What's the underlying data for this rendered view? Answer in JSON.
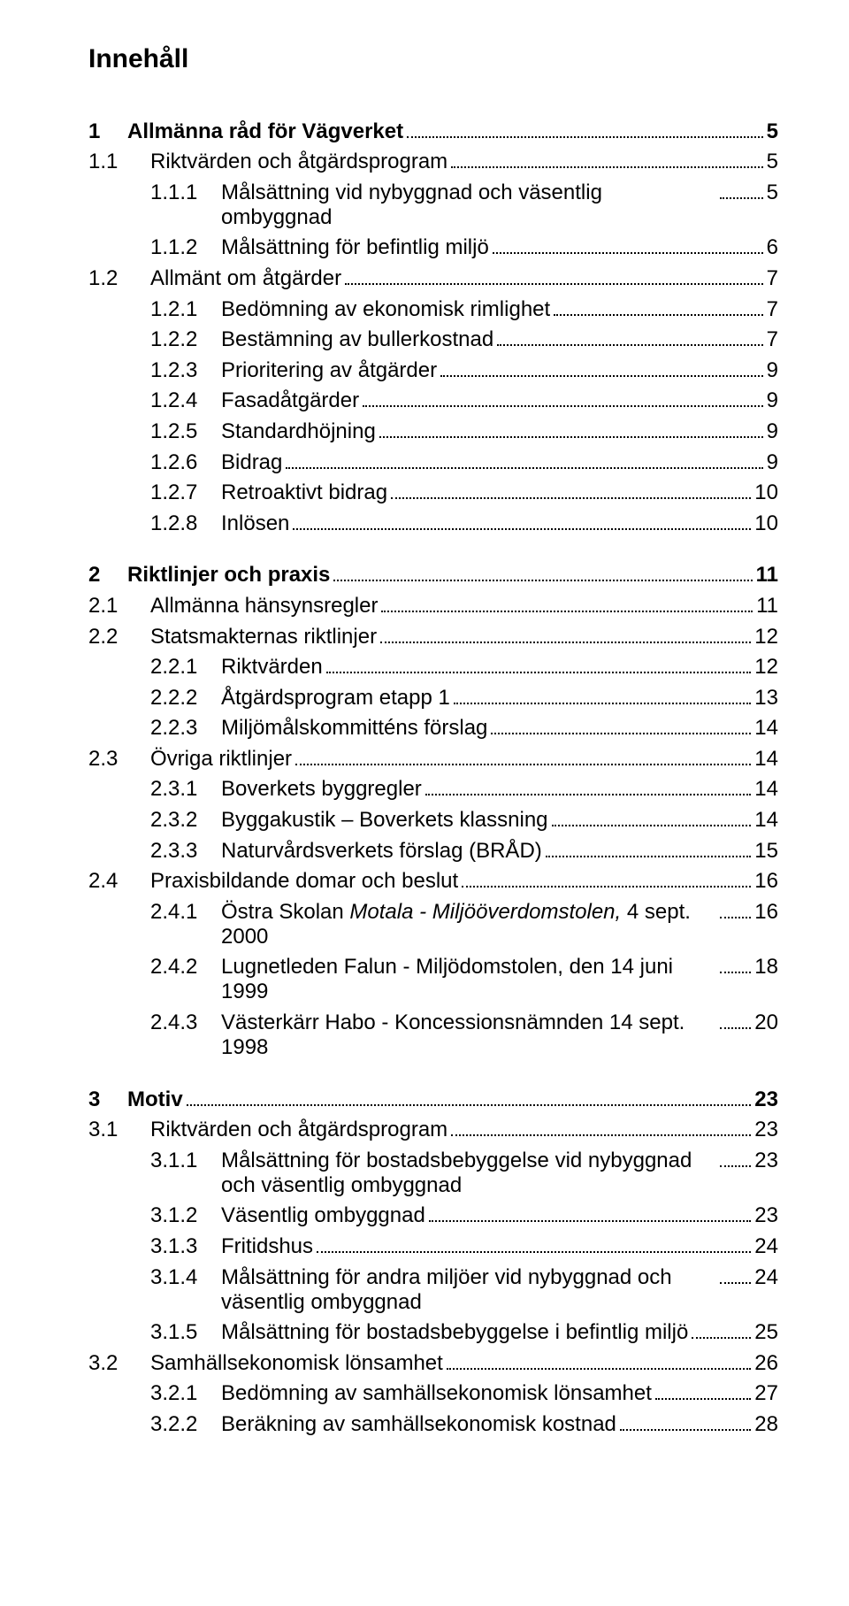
{
  "title": "Innehåll",
  "toc": [
    {
      "level": 1,
      "num": "1",
      "text": "Allmänna råd för Vägverket",
      "page": "5"
    },
    {
      "level": 2,
      "num": "1.1",
      "text": "Riktvärden och åtgärdsprogram",
      "page": "5"
    },
    {
      "level": 3,
      "num": "1.1.1",
      "text": "Målsättning vid nybyggnad och väsentlig ombyggnad",
      "page": "5"
    },
    {
      "level": 3,
      "num": "1.1.2",
      "text": "Målsättning för befintlig miljö",
      "page": "6"
    },
    {
      "level": 2,
      "num": "1.2",
      "text": "Allmänt om åtgärder",
      "page": "7"
    },
    {
      "level": 3,
      "num": "1.2.1",
      "text": "Bedömning av ekonomisk rimlighet",
      "page": "7"
    },
    {
      "level": 3,
      "num": "1.2.2",
      "text": "Bestämning av bullerkostnad",
      "page": "7"
    },
    {
      "level": 3,
      "num": "1.2.3",
      "text": "Prioritering av åtgärder",
      "page": "9"
    },
    {
      "level": 3,
      "num": "1.2.4",
      "text": "Fasadåtgärder",
      "page": "9"
    },
    {
      "level": 3,
      "num": "1.2.5",
      "text": "Standardhöjning",
      "page": "9"
    },
    {
      "level": 3,
      "num": "1.2.6",
      "text": "Bidrag",
      "page": "9"
    },
    {
      "level": 3,
      "num": "1.2.7",
      "text": "Retroaktivt bidrag",
      "page": "10"
    },
    {
      "level": 3,
      "num": "1.2.8",
      "text": "Inlösen",
      "page": "10"
    },
    {
      "level": 1,
      "num": "2",
      "text": "Riktlinjer och praxis",
      "page": "11"
    },
    {
      "level": 2,
      "num": "2.1",
      "text": "Allmänna hänsynsregler",
      "page": "11"
    },
    {
      "level": 2,
      "num": "2.2",
      "text": "Statsmakternas riktlinjer",
      "page": "12"
    },
    {
      "level": 3,
      "num": "2.2.1",
      "text": "Riktvärden",
      "page": "12"
    },
    {
      "level": 3,
      "num": "2.2.2",
      "text": "Åtgärdsprogram  etapp 1",
      "page": "13"
    },
    {
      "level": 3,
      "num": "2.2.3",
      "text": "Miljömålskommitténs förslag",
      "page": "14"
    },
    {
      "level": 2,
      "num": "2.3",
      "text": "Övriga riktlinjer",
      "page": "14"
    },
    {
      "level": 3,
      "num": "2.3.1",
      "text": "Boverkets byggregler",
      "page": "14"
    },
    {
      "level": 3,
      "num": "2.3.2",
      "text": "Byggakustik – Boverkets  klassning",
      "page": "14"
    },
    {
      "level": 3,
      "num": "2.3.3",
      "text": "Naturvårdsverkets förslag (BRÅD)",
      "page": "15"
    },
    {
      "level": 2,
      "num": "2.4",
      "text": "Praxisbildande domar och beslut",
      "page": "16"
    },
    {
      "level": 3,
      "num": "2.4.1",
      "text_html": "Östra Skolan <span class=\"italic\">Motala - Miljööverdomstolen,</span>  4 sept. 2000",
      "page": "16"
    },
    {
      "level": 3,
      "num": "2.4.2",
      "text": "Lugnetleden Falun - Miljödomstolen, den 14 juni 1999",
      "page": "18"
    },
    {
      "level": 3,
      "num": "2.4.3",
      "text": "Västerkärr Habo - Koncessionsnämnden  14 sept. 1998",
      "page": "20"
    },
    {
      "level": 1,
      "num": "3",
      "text": "Motiv",
      "page": "23"
    },
    {
      "level": 2,
      "num": "3.1",
      "text": "Riktvärden och åtgärdsprogram",
      "page": "23"
    },
    {
      "level": 3,
      "num": "3.1.1",
      "text": "Målsättning för bostadsbebyggelse vid nybyggnad och väsentlig ombyggnad",
      "page": "23"
    },
    {
      "level": 3,
      "num": "3.1.2",
      "text": "Väsentlig ombyggnad",
      "page": "23"
    },
    {
      "level": 3,
      "num": "3.1.3",
      "text": "Fritidshus",
      "page": "24"
    },
    {
      "level": 3,
      "num": "3.1.4",
      "text": "Målsättning för andra miljöer vid nybyggnad och väsentlig ombyggnad",
      "page": "24"
    },
    {
      "level": 3,
      "num": "3.1.5",
      "text": "Målsättning för bostadsbebyggelse i befintlig miljö",
      "page": "25"
    },
    {
      "level": 2,
      "num": "3.2",
      "text": "Samhällsekonomisk lönsamhet",
      "page": "26"
    },
    {
      "level": 3,
      "num": "3.2.1",
      "text": "Bedömning av samhällsekonomisk lönsamhet",
      "page": "27"
    },
    {
      "level": 3,
      "num": "3.2.2",
      "text": "Beräkning av samhällsekonomisk kostnad",
      "page": "28"
    }
  ]
}
